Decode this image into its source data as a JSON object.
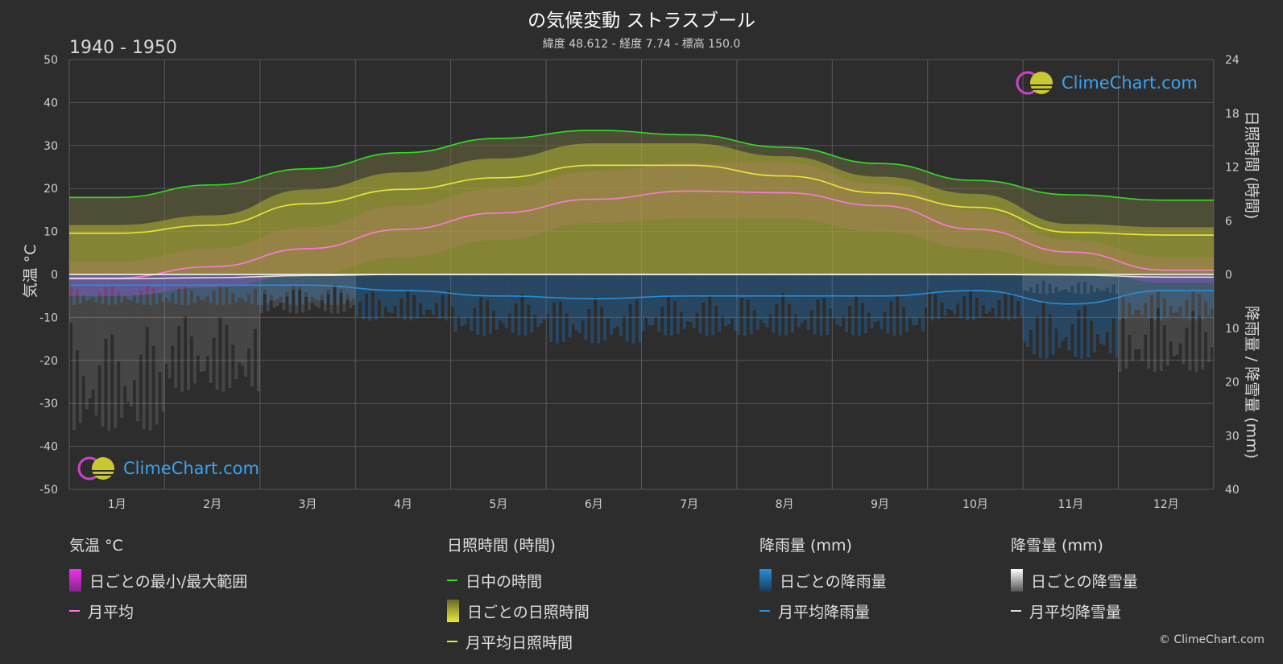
{
  "title": "の気候変動 ストラスブール",
  "subtitle": "緯度 48.612 - 経度 7.74 - 標高 150.0",
  "period": "1940 - 1950",
  "brand": "ClimeChart.com",
  "copyright": "© ClimeChart.com",
  "axes": {
    "left_label": "気温 °C",
    "right_top_label": "日照時間 (時間)",
    "right_bottom_label": "降雨量 / 降雪量 (mm)",
    "temp_ticks": [
      "50",
      "40",
      "30",
      "20",
      "10",
      "0",
      "-10",
      "-20",
      "-30",
      "-40",
      "-50"
    ],
    "sun_ticks": [
      "24",
      "18",
      "12",
      "6",
      "0"
    ],
    "precip_ticks": [
      "10",
      "20",
      "30",
      "40"
    ]
  },
  "legend": {
    "temp": {
      "title": "気温 °C",
      "range_label": "日ごとの最小/最大範囲",
      "avg_label": "月平均"
    },
    "sun": {
      "title": "日照時間 (時間)",
      "daylight_label": "日中の時間",
      "daily_label": "日ごとの日照時間",
      "avg_label": "月平均日照時間"
    },
    "rain": {
      "title": "降雨量 (mm)",
      "daily_label": "日ごとの降雨量",
      "avg_label": "月平均降雨量"
    },
    "snow": {
      "title": "降雪量 (mm)",
      "daily_label": "日ごとの降雪量",
      "avg_label": "月平均降雪量"
    }
  },
  "colors": {
    "daylight": "#33dd22",
    "sunshine_line": "#e8e83a",
    "temp_line": "#ff77dd",
    "rain_line": "#2a8fd8",
    "snow_line": "#dddddd",
    "temp_range": "#dd22dd",
    "sun_fill": "#c8c832",
    "rain_fill": "#1f78c8",
    "snow_fill": "#bbbbbb"
  },
  "chart_data": {
    "type": "area",
    "categories": [
      "1月",
      "2月",
      "3月",
      "4月",
      "5月",
      "6月",
      "7月",
      "8月",
      "9月",
      "10月",
      "11月",
      "12月"
    ],
    "temperature_ylim": [
      -50,
      50
    ],
    "sunshine_ylim": [
      0,
      24
    ],
    "precip_ylim": [
      0,
      40
    ],
    "series": [
      {
        "name": "日中の時間",
        "axis": "sunshine",
        "values": [
          8.6,
          10.0,
          11.8,
          13.6,
          15.2,
          16.1,
          15.6,
          14.2,
          12.4,
          10.5,
          8.9,
          8.3
        ]
      },
      {
        "name": "月平均日照時間",
        "axis": "sunshine",
        "values": [
          4.6,
          5.5,
          7.9,
          9.5,
          10.8,
          12.2,
          12.2,
          11.0,
          9.1,
          7.5,
          4.7,
          4.4
        ]
      },
      {
        "name": "月平均",
        "axis": "temperature",
        "values": [
          -0.8,
          1.8,
          6.0,
          10.5,
          14.3,
          17.5,
          19.4,
          19.0,
          16.0,
          10.5,
          5.2,
          1.0
        ]
      },
      {
        "name": "月平均降雨量",
        "axis": "precip",
        "values": [
          2.0,
          2.0,
          2.0,
          3.0,
          4.0,
          4.5,
          4.0,
          4.0,
          4.0,
          3.0,
          5.5,
          3.0
        ]
      },
      {
        "name": "月平均降雪量",
        "axis": "precip",
        "values": [
          0.8,
          0.6,
          0.2,
          0.0,
          0.0,
          0.0,
          0.0,
          0.0,
          0.0,
          0.0,
          0.1,
          0.5
        ]
      },
      {
        "name": "日ごとの最小/最大範囲 (max)",
        "axis": "temperature",
        "values": [
          3,
          6,
          11,
          16,
          20,
          24,
          26,
          26,
          21,
          15,
          8,
          4
        ]
      },
      {
        "name": "日ごとの最小/最大範囲 (min)",
        "axis": "temperature",
        "values": [
          -5,
          -3,
          0,
          4,
          8,
          12,
          13,
          13,
          10,
          6,
          2,
          -2
        ]
      }
    ]
  }
}
